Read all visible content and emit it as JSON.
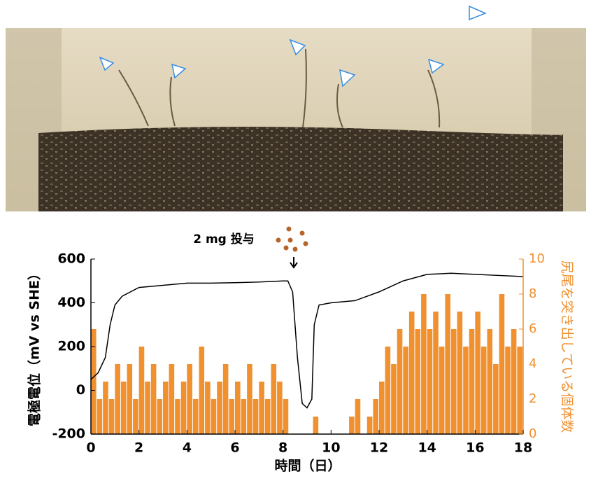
{
  "chart_data": {
    "type": "combo",
    "annotation": "2 mg 投与",
    "x_label": "時間（日）",
    "y_label": "電極電位（mV vs SHE）",
    "y2_label": "尻尾を突き出している個体数",
    "xlim": [
      0,
      18
    ],
    "xticks": [
      0,
      2,
      4,
      6,
      8,
      10,
      12,
      14,
      16,
      18
    ],
    "ylim": [
      -200,
      600
    ],
    "yticks": [
      -200,
      0,
      200,
      400,
      600
    ],
    "y2lim": [
      0,
      10
    ],
    "y2ticks": [
      0,
      2,
      4,
      6,
      8,
      10
    ],
    "series": [
      {
        "type": "bar",
        "axis": "y2",
        "color": "#f0902f",
        "x": [
          0,
          0.25,
          0.5,
          0.75,
          1,
          1.25,
          1.5,
          1.75,
          2,
          2.25,
          2.5,
          2.75,
          3,
          3.25,
          3.5,
          3.75,
          4,
          4.25,
          4.5,
          4.75,
          5,
          5.25,
          5.5,
          5.75,
          6,
          6.25,
          6.5,
          6.75,
          7,
          7.25,
          7.5,
          7.75,
          8,
          8.25,
          8.5,
          8.75,
          9,
          9.25,
          9.5,
          9.75,
          10,
          10.25,
          10.5,
          10.75,
          11,
          11.25,
          11.5,
          11.75,
          12,
          12.25,
          12.5,
          12.75,
          13,
          13.25,
          13.5,
          13.75,
          14,
          14.25,
          14.5,
          14.75,
          15,
          15.25,
          15.5,
          15.75,
          16,
          16.25,
          16.5,
          16.75,
          17,
          17.25,
          17.5,
          17.75
        ],
        "values": [
          6,
          2,
          3,
          2,
          4,
          3,
          4,
          2,
          5,
          3,
          4,
          2,
          3,
          4,
          2,
          3,
          4,
          2,
          5,
          3,
          2,
          3,
          4,
          2,
          3,
          2,
          4,
          2,
          3,
          2,
          4,
          3,
          2,
          0,
          0,
          0,
          0,
          1,
          0,
          0,
          0,
          0,
          0,
          1,
          2,
          0,
          1,
          2,
          3,
          5,
          4,
          6,
          5,
          7,
          6,
          8,
          6,
          7,
          5,
          8,
          6,
          7,
          5,
          6,
          7,
          5,
          6,
          4,
          8,
          5,
          6,
          5
        ]
      },
      {
        "type": "line",
        "color": "#000000",
        "x": [
          0,
          0.3,
          0.6,
          0.8,
          1,
          1.3,
          2,
          3,
          4,
          5,
          6,
          7,
          8,
          8.2,
          8.4,
          8.6,
          8.8,
          9,
          9.2,
          9.3,
          9.5,
          10,
          11,
          12,
          13,
          14,
          15,
          16,
          17,
          18
        ],
        "values": [
          50,
          80,
          150,
          300,
          390,
          430,
          470,
          480,
          490,
          490,
          492,
          495,
          500,
          500,
          450,
          150,
          -60,
          -80,
          -40,
          300,
          390,
          400,
          410,
          450,
          500,
          530,
          535,
          530,
          525,
          520
        ]
      }
    ]
  }
}
